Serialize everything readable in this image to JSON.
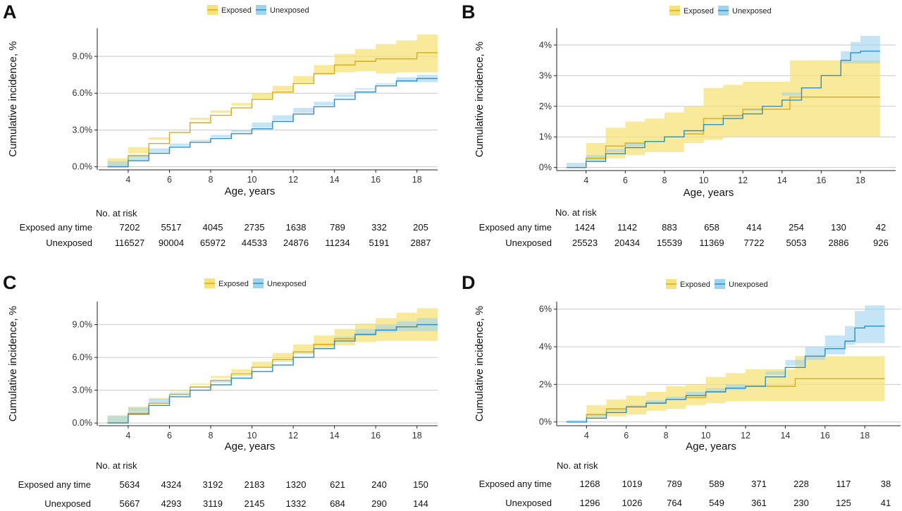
{
  "colors": {
    "exposed": "#d6ac1b",
    "exposed_band": "#f6e27a",
    "unexposed": "#2f8fc4",
    "unexposed_band": "#9fd4f0",
    "overlap_band": "#a9a9a9",
    "grid": "#c8c8c8",
    "axis": "#222222"
  },
  "chart_data": [
    {
      "type": "line",
      "panel": "A",
      "legend": [
        "Exposed",
        "Unexposed"
      ],
      "xlabel": "Age, years",
      "ylabel": "Cumulative incidence, %",
      "xticks": [
        4,
        6,
        8,
        10,
        12,
        14,
        16,
        18
      ],
      "yticks": [
        0,
        3,
        6,
        9
      ],
      "ytick_labels": [
        "0.0%",
        "3.0%",
        "6.0%",
        "9.0%"
      ],
      "xlim": [
        2.5,
        19
      ],
      "ylim": [
        -0.25,
        11.3
      ],
      "series": [
        {
          "name": "Exposed",
          "x": [
            3,
            4,
            5,
            6,
            7,
            8,
            9,
            10,
            11,
            12,
            13,
            14,
            15,
            16,
            17,
            18,
            19
          ],
          "y": [
            0,
            0.9,
            1.9,
            2.8,
            3.6,
            4.2,
            4.8,
            5.5,
            6.1,
            6.8,
            7.6,
            8.3,
            8.6,
            8.8,
            8.8,
            9.3,
            9.3
          ],
          "lower": [
            0,
            0.7,
            1.6,
            2.4,
            3.2,
            3.8,
            4.4,
            5.0,
            5.6,
            6.2,
            6.9,
            7.5,
            7.7,
            7.8,
            7.6,
            7.7,
            7.7
          ],
          "upper": [
            0,
            1.1,
            2.2,
            3.2,
            4.0,
            4.6,
            5.2,
            6.0,
            6.6,
            7.4,
            8.3,
            9.2,
            9.6,
            10.0,
            10.3,
            10.8,
            10.8
          ]
        },
        {
          "name": "Unexposed",
          "x": [
            3,
            4,
            5,
            6,
            7,
            8,
            9,
            10,
            11,
            12,
            13,
            14,
            15,
            16,
            17,
            18,
            19
          ],
          "y": [
            0,
            0.5,
            1.1,
            1.6,
            2.0,
            2.3,
            2.7,
            3.1,
            3.7,
            4.3,
            4.9,
            5.5,
            6.1,
            6.6,
            7.0,
            7.2,
            7.2
          ],
          "lower": [
            0,
            0.45,
            1.0,
            1.5,
            1.9,
            2.2,
            2.6,
            3.0,
            3.6,
            4.2,
            4.8,
            5.3,
            5.9,
            6.4,
            6.7,
            6.9,
            6.9
          ],
          "upper": [
            0,
            0.55,
            1.2,
            1.7,
            2.1,
            2.4,
            2.8,
            3.2,
            3.8,
            4.4,
            5.0,
            5.7,
            6.3,
            6.8,
            7.3,
            7.5,
            7.5
          ]
        }
      ],
      "risk_table": {
        "title": "No. at risk",
        "rows": [
          {
            "label": "Exposed any time",
            "values": [
              "7202",
              "5517",
              "4045",
              "2735",
              "1638",
              "789",
              "332",
              "205"
            ]
          },
          {
            "label": "Unexposed",
            "values": [
              "116527",
              "90004",
              "65972",
              "44533",
              "24876",
              "11234",
              "5191",
              "2887"
            ]
          }
        ]
      }
    },
    {
      "type": "line",
      "panel": "B",
      "legend": [
        "Exposed",
        "Unexposed"
      ],
      "xlabel": "Age, years",
      "ylabel": "Cumulative incidence, %",
      "xticks": [
        4,
        6,
        8,
        10,
        12,
        14,
        16,
        18
      ],
      "yticks": [
        0,
        1,
        2,
        3,
        4
      ],
      "ytick_labels": [
        "0%",
        "1%",
        "2%",
        "3%",
        "4%"
      ],
      "xlim": [
        2.5,
        19.8
      ],
      "ylim": [
        -0.1,
        4.55
      ],
      "series": [
        {
          "name": "Exposed",
          "x": [
            3,
            4,
            5,
            6,
            7,
            8,
            9,
            10,
            11,
            12,
            13,
            14,
            14.4,
            15,
            16,
            17,
            18,
            19
          ],
          "y": [
            0,
            0.3,
            0.7,
            0.8,
            0.85,
            1.0,
            1.1,
            1.6,
            1.7,
            1.9,
            1.9,
            1.9,
            2.3,
            2.3,
            2.3,
            2.3,
            2.3,
            2.3
          ],
          "lower": [
            0,
            0,
            0.2,
            0.3,
            0.4,
            0.5,
            0.5,
            0.8,
            0.9,
            1.0,
            1.0,
            1.0,
            1.0,
            1.0,
            1.0,
            1.0,
            1.0,
            1.0
          ],
          "upper": [
            0,
            0.8,
            1.3,
            1.5,
            1.6,
            1.8,
            2.0,
            2.6,
            2.7,
            2.8,
            2.8,
            2.8,
            3.5,
            3.5,
            3.5,
            3.5,
            3.5,
            3.5
          ]
        },
        {
          "name": "Unexposed",
          "x": [
            3,
            4,
            5,
            6,
            7,
            8,
            9,
            10,
            11,
            12,
            13,
            14,
            15,
            16,
            17,
            17.5,
            18,
            19
          ],
          "y": [
            0,
            0.2,
            0.45,
            0.65,
            0.85,
            1.0,
            1.2,
            1.4,
            1.6,
            1.75,
            2.0,
            2.2,
            2.6,
            3.0,
            3.5,
            3.75,
            3.8,
            3.8
          ],
          "lower": [
            0,
            0.15,
            0.4,
            0.6,
            0.8,
            0.9,
            1.1,
            1.3,
            1.5,
            1.65,
            1.9,
            2.1,
            2.45,
            2.8,
            3.25,
            3.4,
            3.4,
            3.4
          ],
          "upper": [
            0,
            0.25,
            0.5,
            0.7,
            0.9,
            1.1,
            1.3,
            1.5,
            1.7,
            1.85,
            2.1,
            2.35,
            2.8,
            3.25,
            3.8,
            4.1,
            4.3,
            4.3
          ]
        }
      ],
      "risk_table": {
        "title": "No. at risk",
        "rows": [
          {
            "label": "Exposed any time",
            "values": [
              "1424",
              "1142",
              "883",
              "658",
              "414",
              "254",
              "130",
              "42"
            ]
          },
          {
            "label": "Unexposed",
            "values": [
              "25523",
              "20434",
              "15539",
              "11369",
              "7722",
              "5053",
              "2886",
              "926"
            ]
          }
        ]
      }
    },
    {
      "type": "line",
      "panel": "C",
      "legend": [
        "Exposed",
        "Unexposed"
      ],
      "xlabel": "Age, years",
      "ylabel": "Cumulative incidence, %",
      "xticks": [
        4,
        6,
        8,
        10,
        12,
        14,
        16,
        18
      ],
      "yticks": [
        0,
        3,
        6,
        9
      ],
      "ytick_labels": [
        "0.0%",
        "3.0%",
        "6.0%",
        "9.0%"
      ],
      "xlim": [
        2.5,
        19
      ],
      "ylim": [
        -0.25,
        11.1
      ],
      "series": [
        {
          "name": "Exposed",
          "x": [
            3,
            4,
            5,
            6,
            7,
            8,
            9,
            10,
            11,
            12,
            13,
            14,
            15,
            16,
            17,
            18,
            19
          ],
          "y": [
            0,
            0.9,
            1.8,
            2.6,
            3.3,
            3.9,
            4.5,
            5.1,
            5.8,
            6.5,
            7.2,
            7.7,
            8.1,
            8.5,
            8.8,
            9.0,
            9.0
          ],
          "lower": [
            0,
            0.7,
            1.5,
            2.3,
            3.0,
            3.5,
            4.1,
            4.6,
            5.2,
            5.8,
            6.4,
            6.8,
            7.1,
            7.4,
            7.5,
            7.5,
            7.5
          ],
          "upper": [
            0,
            1.1,
            2.1,
            2.9,
            3.6,
            4.3,
            4.9,
            5.6,
            6.4,
            7.2,
            8.0,
            8.6,
            9.1,
            9.6,
            10.1,
            10.5,
            10.5
          ]
        },
        {
          "name": "Unexposed",
          "x": [
            3,
            4,
            5,
            6,
            7,
            8,
            9,
            10,
            11,
            12,
            13,
            14,
            15,
            16,
            17,
            18,
            19
          ],
          "y": [
            0,
            0.8,
            1.6,
            2.4,
            3.0,
            3.5,
            4.1,
            4.7,
            5.3,
            6.0,
            6.8,
            7.5,
            8.1,
            8.5,
            8.8,
            9.0,
            9.0
          ],
          "lower": [
            0,
            0.65,
            1.4,
            2.2,
            2.8,
            3.3,
            3.9,
            4.4,
            5.0,
            5.7,
            6.4,
            7.1,
            7.6,
            8.0,
            8.3,
            8.4,
            8.4
          ],
          "upper": [
            0,
            0.95,
            1.8,
            2.6,
            3.2,
            3.7,
            4.3,
            5.0,
            5.6,
            6.3,
            7.2,
            7.9,
            8.6,
            9.0,
            9.3,
            9.6,
            9.6
          ]
        }
      ],
      "risk_table": {
        "title": "No. at risk",
        "rows": [
          {
            "label": "Exposed any time",
            "values": [
              "5634",
              "4324",
              "3192",
              "2183",
              "1320",
              "621",
              "240",
              "150"
            ]
          },
          {
            "label": "Unexposed",
            "values": [
              "5667",
              "4293",
              "3119",
              "2145",
              "1332",
              "684",
              "290",
              "144"
            ]
          }
        ]
      }
    },
    {
      "type": "line",
      "panel": "D",
      "legend": [
        "Exposed",
        "Unexposed"
      ],
      "xlabel": "Age, years",
      "ylabel": "Cumulative incidence, %",
      "xticks": [
        4,
        6,
        8,
        10,
        12,
        14,
        16,
        18
      ],
      "yticks": [
        0,
        2,
        4,
        6
      ],
      "ytick_labels": [
        "0%",
        "2%",
        "4%",
        "6%"
      ],
      "xlim": [
        2.5,
        19.8
      ],
      "ylim": [
        -0.2,
        6.4
      ],
      "series": [
        {
          "name": "Exposed",
          "x": [
            3,
            4,
            5,
            6,
            7,
            8,
            9,
            10,
            11,
            12,
            13,
            14,
            14.5,
            15,
            16,
            17,
            18,
            19
          ],
          "y": [
            0,
            0.4,
            0.7,
            0.8,
            1.0,
            1.2,
            1.3,
            1.6,
            1.8,
            1.9,
            1.9,
            1.9,
            2.3,
            2.3,
            2.3,
            2.3,
            2.3,
            2.3
          ],
          "lower": [
            0,
            0,
            0.2,
            0.3,
            0.4,
            0.6,
            0.7,
            0.9,
            1.0,
            1.1,
            1.1,
            1.1,
            1.1,
            1.1,
            1.1,
            1.1,
            1.1,
            1.1
          ],
          "upper": [
            0,
            0.9,
            1.2,
            1.4,
            1.6,
            1.9,
            2.0,
            2.4,
            2.6,
            2.8,
            2.8,
            2.8,
            3.5,
            3.5,
            3.5,
            3.5,
            3.5,
            3.5
          ]
        },
        {
          "name": "Unexposed",
          "x": [
            3,
            4,
            5,
            6,
            7,
            8,
            9,
            10,
            11,
            12,
            13,
            14,
            15,
            16,
            17,
            17.5,
            18,
            19
          ],
          "y": [
            0,
            0.2,
            0.5,
            0.8,
            1.0,
            1.2,
            1.4,
            1.6,
            1.8,
            1.9,
            2.4,
            2.9,
            3.5,
            3.9,
            4.3,
            5.0,
            5.1,
            5.1
          ],
          "lower": [
            0,
            0.1,
            0.4,
            0.65,
            0.85,
            1.0,
            1.2,
            1.4,
            1.6,
            1.7,
            2.1,
            2.5,
            3.0,
            3.3,
            3.6,
            4.1,
            4.2,
            4.2
          ],
          "upper": [
            0,
            0.3,
            0.6,
            0.9,
            1.15,
            1.35,
            1.6,
            1.8,
            2.0,
            2.1,
            2.7,
            3.3,
            4.0,
            4.6,
            5.1,
            5.9,
            6.2,
            6.2
          ]
        }
      ],
      "risk_table": {
        "title": "No. at risk",
        "rows": [
          {
            "label": "Exposed any time",
            "values": [
              "1268",
              "1019",
              "789",
              "589",
              "371",
              "228",
              "117",
              "38"
            ]
          },
          {
            "label": "Unexposed",
            "values": [
              "1296",
              "1026",
              "764",
              "549",
              "361",
              "230",
              "125",
              "41"
            ]
          }
        ]
      }
    }
  ]
}
